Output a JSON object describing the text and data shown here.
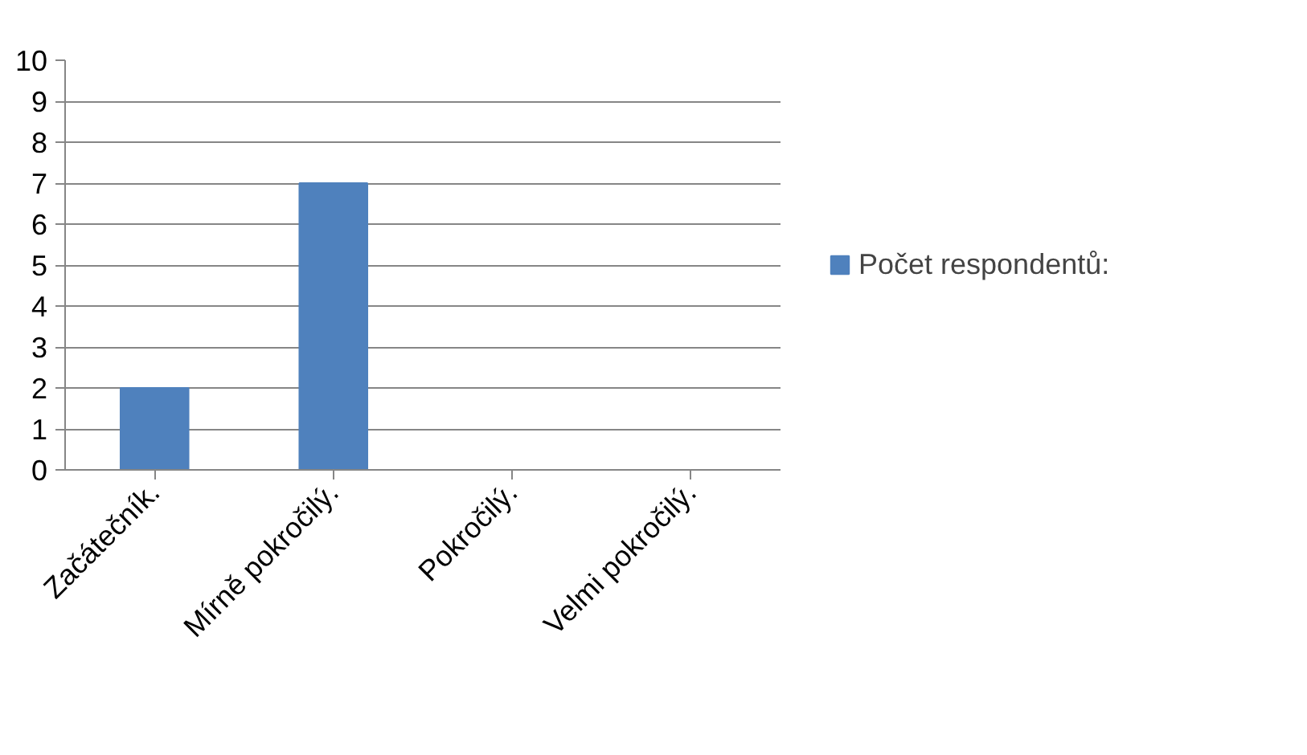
{
  "chart_data": {
    "type": "bar",
    "categories": [
      "Začátečník.",
      "Mírně pokročilý.",
      "Pokročilý.",
      "Velmi pokročilý."
    ],
    "series": [
      {
        "name": "Počet respondentů:",
        "color": "#4f81bd",
        "values": [
          2,
          7,
          0,
          0
        ]
      }
    ],
    "ylim": [
      0,
      10
    ],
    "yticks": [
      0,
      1,
      2,
      3,
      4,
      5,
      6,
      7,
      8,
      9,
      10
    ],
    "grid": "y",
    "legend": "right"
  }
}
